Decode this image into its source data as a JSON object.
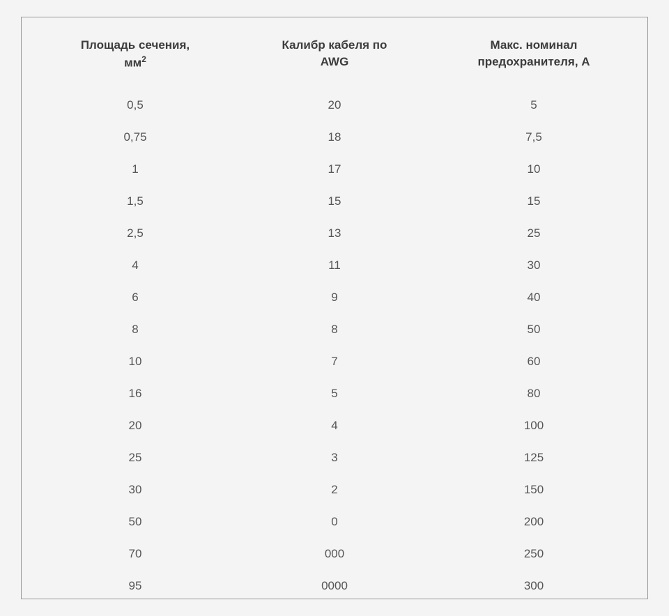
{
  "table": {
    "type": "table",
    "background_color": "#f4f4f4",
    "border_color": "#999999",
    "header_text_color": "#3c3c3c",
    "cell_text_color": "#555555",
    "header_fontsize": 17,
    "cell_fontsize": 17,
    "columns": [
      {
        "label_line1": "Площадь сечения,",
        "label_line2": "мм",
        "superscript": "2",
        "width_pct": 33.3,
        "align": "center"
      },
      {
        "label_line1": "Калибр кабеля по",
        "label_line2": "AWG",
        "width_pct": 33.3,
        "align": "center"
      },
      {
        "label_line1": "Макс. номинал",
        "label_line2": "предохранителя, А",
        "width_pct": 33.3,
        "align": "center"
      }
    ],
    "rows": [
      [
        "0,5",
        "20",
        "5"
      ],
      [
        "0,75",
        "18",
        "7,5"
      ],
      [
        "1",
        "17",
        "10"
      ],
      [
        "1,5",
        "15",
        "15"
      ],
      [
        "2,5",
        "13",
        "25"
      ],
      [
        "4",
        "11",
        "30"
      ],
      [
        "6",
        "9",
        "40"
      ],
      [
        "8",
        "8",
        "50"
      ],
      [
        "10",
        "7",
        "60"
      ],
      [
        "16",
        "5",
        "80"
      ],
      [
        "20",
        "4",
        "100"
      ],
      [
        "25",
        "3",
        "125"
      ],
      [
        "30",
        "2",
        "150"
      ],
      [
        "50",
        "0",
        "200"
      ],
      [
        "70",
        "000",
        "250"
      ],
      [
        "95",
        "0000",
        "300"
      ]
    ]
  }
}
